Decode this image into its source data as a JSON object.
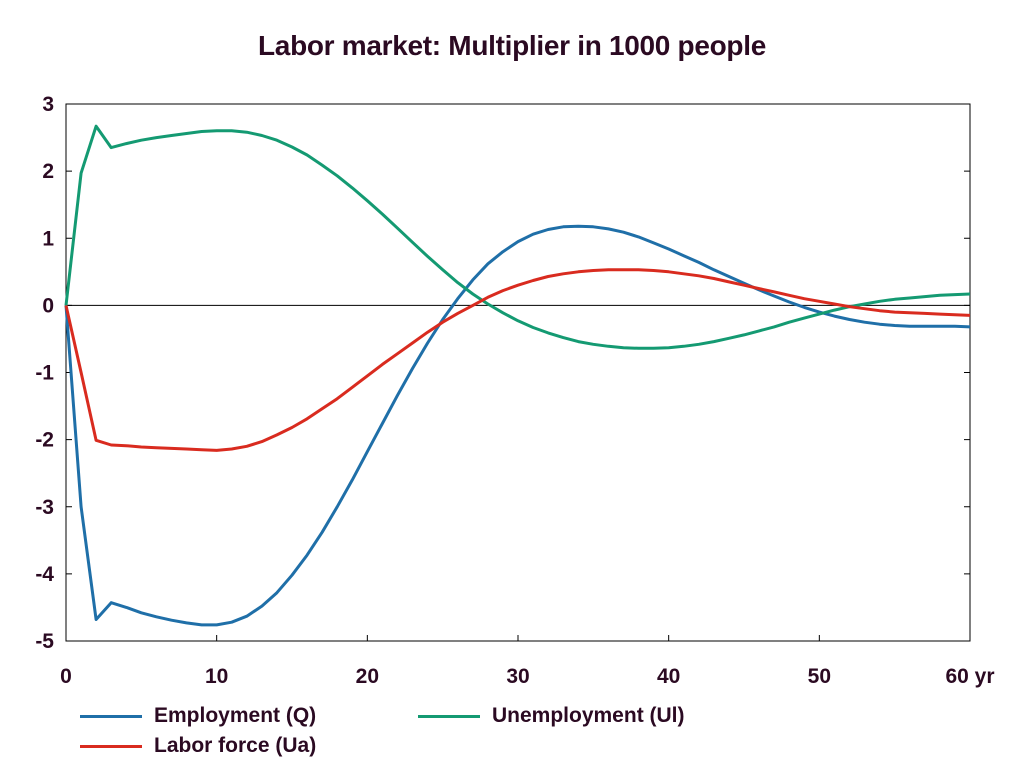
{
  "chart_data": {
    "type": "line",
    "title": "Labor market: Multiplier in 1000 people",
    "x_unit_label": "60 yr",
    "xlim": [
      0,
      60
    ],
    "ylim": [
      -5,
      3
    ],
    "x_ticks": [
      0,
      10,
      20,
      30,
      40,
      50,
      60
    ],
    "x_tick_labels": [
      "0",
      "10",
      "20",
      "30",
      "40",
      "50",
      "60 yr"
    ],
    "y_ticks": [
      3,
      2,
      1,
      0,
      -1,
      -2,
      -3,
      -4,
      -5
    ],
    "y_tick_labels": [
      "3",
      "2",
      "1",
      "0",
      "-1",
      "-2",
      "-3",
      "-4",
      "-5"
    ],
    "grid": false,
    "zero_line": true,
    "legend_position": "bottom",
    "x": [
      0,
      1,
      2,
      3,
      4,
      5,
      6,
      7,
      8,
      9,
      10,
      11,
      12,
      13,
      14,
      15,
      16,
      17,
      18,
      19,
      20,
      21,
      22,
      23,
      24,
      25,
      26,
      27,
      28,
      29,
      30,
      31,
      32,
      33,
      34,
      35,
      36,
      37,
      38,
      39,
      40,
      41,
      42,
      43,
      44,
      45,
      46,
      47,
      48,
      49,
      50,
      51,
      52,
      53,
      54,
      55,
      56,
      57,
      58,
      59,
      60
    ],
    "series": [
      {
        "name": "Employment (Q)",
        "color": "#1f6fa8",
        "values": [
          0,
          -3.0,
          -4.68,
          -4.43,
          -4.5,
          -4.58,
          -4.64,
          -4.69,
          -4.73,
          -4.76,
          -4.76,
          -4.72,
          -4.63,
          -4.48,
          -4.28,
          -4.02,
          -3.72,
          -3.38,
          -3.0,
          -2.6,
          -2.18,
          -1.76,
          -1.34,
          -0.94,
          -0.56,
          -0.21,
          0.1,
          0.38,
          0.62,
          0.8,
          0.95,
          1.06,
          1.13,
          1.17,
          1.18,
          1.17,
          1.14,
          1.09,
          1.02,
          0.93,
          0.84,
          0.74,
          0.64,
          0.53,
          0.43,
          0.33,
          0.23,
          0.14,
          0.05,
          -0.03,
          -0.1,
          -0.16,
          -0.21,
          -0.25,
          -0.28,
          -0.3,
          -0.31,
          -0.31,
          -0.31,
          -0.31,
          -0.32
        ]
      },
      {
        "name": "Unemployment (Ul)",
        "color": "#149a72",
        "values": [
          0,
          1.97,
          2.67,
          2.35,
          2.41,
          2.46,
          2.5,
          2.53,
          2.56,
          2.59,
          2.6,
          2.6,
          2.58,
          2.53,
          2.46,
          2.36,
          2.24,
          2.09,
          1.93,
          1.75,
          1.56,
          1.36,
          1.15,
          0.94,
          0.73,
          0.53,
          0.34,
          0.17,
          0.02,
          -0.11,
          -0.23,
          -0.33,
          -0.41,
          -0.48,
          -0.54,
          -0.58,
          -0.61,
          -0.63,
          -0.64,
          -0.64,
          -0.63,
          -0.61,
          -0.58,
          -0.54,
          -0.49,
          -0.44,
          -0.38,
          -0.32,
          -0.25,
          -0.19,
          -0.13,
          -0.07,
          -0.02,
          0.02,
          0.06,
          0.09,
          0.11,
          0.13,
          0.15,
          0.16,
          0.17
        ]
      },
      {
        "name": "Labor force (Ua)",
        "color": "#d92b1f",
        "values": [
          0,
          -1.0,
          -2.01,
          -2.08,
          -2.09,
          -2.11,
          -2.12,
          -2.13,
          -2.14,
          -2.15,
          -2.16,
          -2.14,
          -2.1,
          -2.03,
          -1.93,
          -1.82,
          -1.69,
          -1.54,
          -1.39,
          -1.22,
          -1.05,
          -0.88,
          -0.72,
          -0.56,
          -0.4,
          -0.25,
          -0.12,
          0.0,
          0.12,
          0.22,
          0.3,
          0.37,
          0.43,
          0.47,
          0.5,
          0.52,
          0.53,
          0.53,
          0.53,
          0.52,
          0.5,
          0.47,
          0.44,
          0.4,
          0.35,
          0.3,
          0.25,
          0.2,
          0.15,
          0.1,
          0.06,
          0.02,
          -0.02,
          -0.05,
          -0.08,
          -0.1,
          -0.11,
          -0.12,
          -0.13,
          -0.14,
          -0.15
        ]
      }
    ]
  }
}
